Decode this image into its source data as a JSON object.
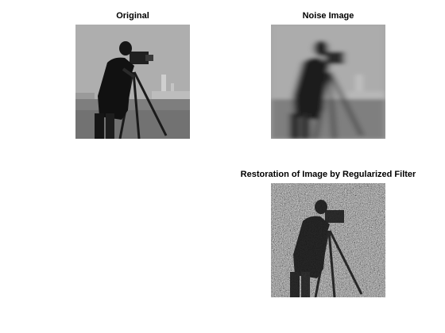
{
  "figure": {
    "panels": [
      {
        "title": "Original"
      },
      {
        "title": "Noise Image"
      },
      {
        "title": "Restoration of Image by Regularized Filter"
      }
    ],
    "colors": {
      "background": "#ffffff",
      "sky": "#a9a9a9",
      "grass": "#7b7b7b",
      "figure": "#141414",
      "buildings": "#c8c8c8"
    }
  }
}
